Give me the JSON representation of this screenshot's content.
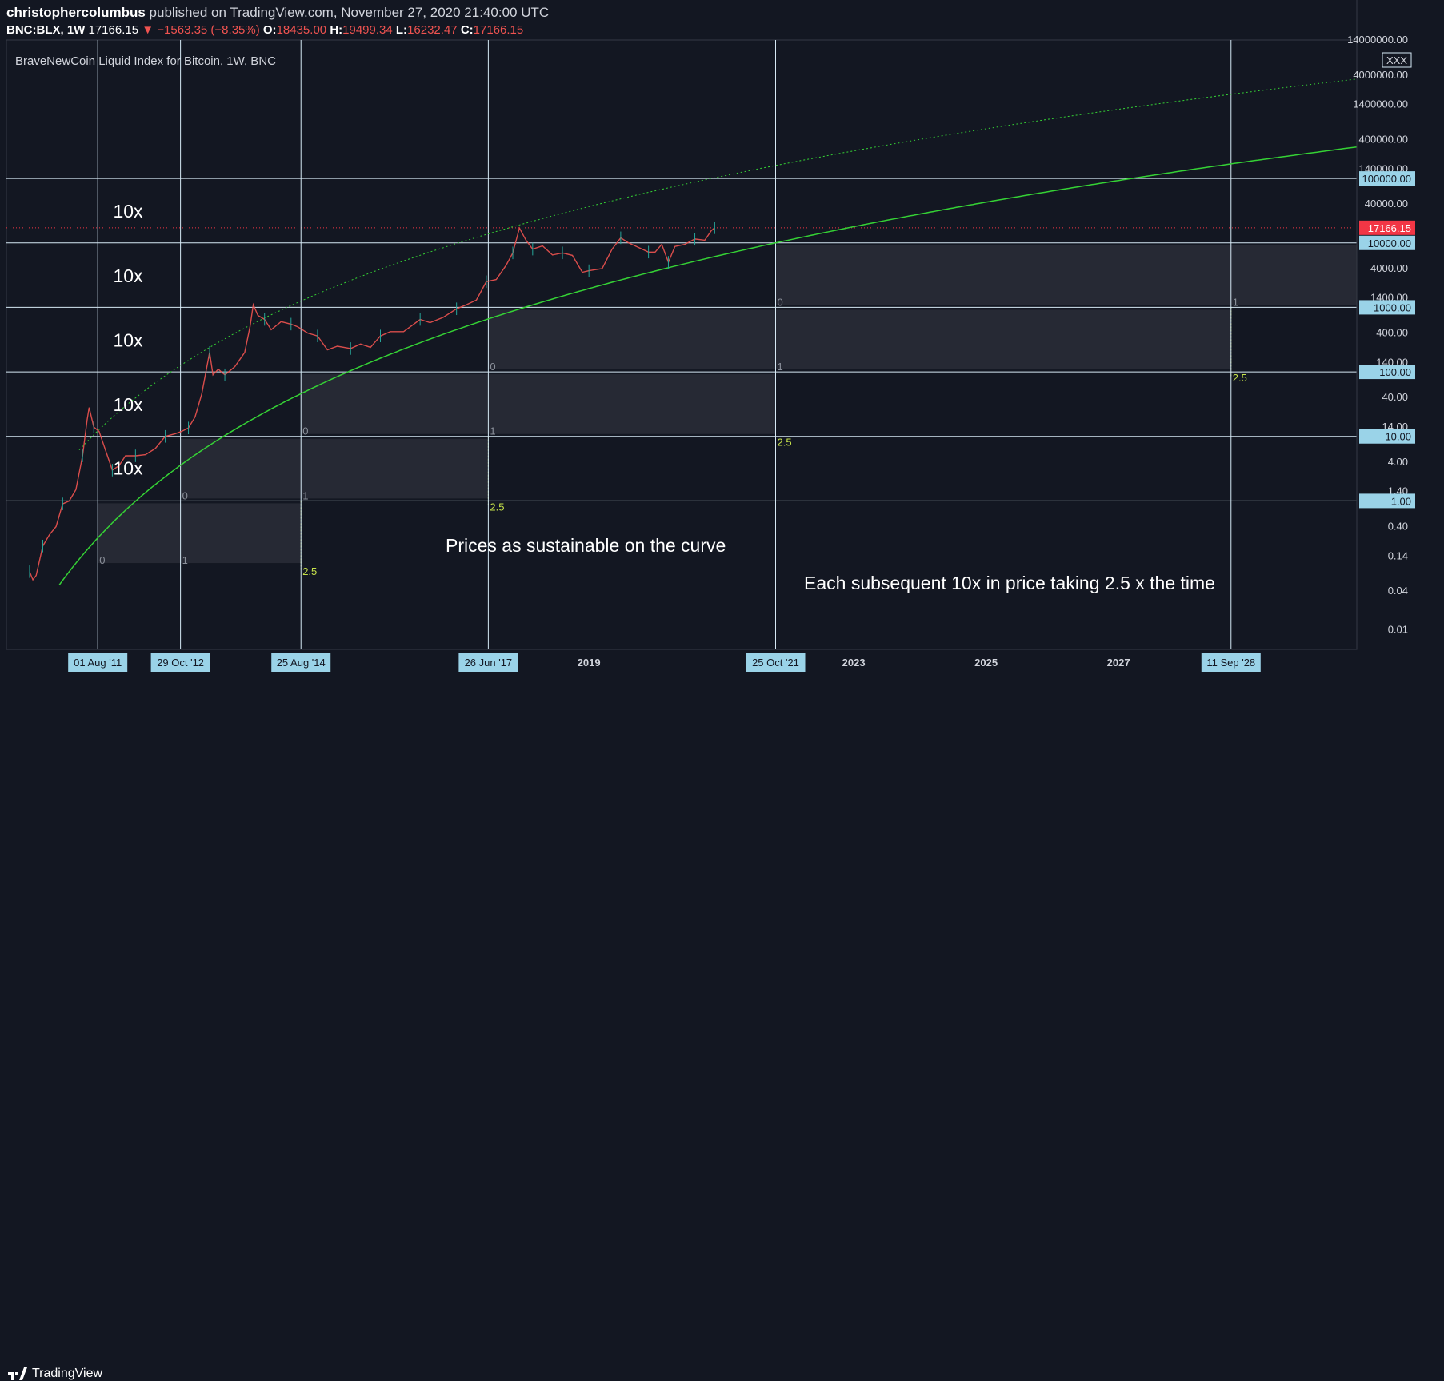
{
  "header": {
    "author": "christophercolumbus",
    "published_text": " published on TradingView.com, November 27, 2020 21:40:00 UTC"
  },
  "ohlc": {
    "symbol": "BNC:BLX, 1W",
    "last": "17166.15",
    "change": "−1563.35 (−8.35%)",
    "o_label": "O:",
    "o": "18435.00",
    "h_label": "H:",
    "h": "19499.34",
    "l_label": "L:",
    "l": "16232.47",
    "c_label": "C:",
    "c": "17166.15"
  },
  "chart_data": {
    "type": "line",
    "title": "BraveNewCoin Liquid Index for Bitcoin, 1W, BNC",
    "y_scale": "log",
    "ylim": [
      0.005,
      14000000
    ],
    "xlim": [
      2010.2,
      2030.6
    ],
    "price_axis_ticks": [
      "14000000.00",
      "4000000.00",
      "1400000.00",
      "400000.00",
      "140000.00",
      "40000.00",
      "4000.00",
      "1400.00",
      "400.00",
      "140.00",
      "40.00",
      "14.00",
      "4.00",
      "1.40",
      "0.40",
      "0.14",
      "0.04",
      "0.01"
    ],
    "tick_values": [
      14000000,
      4000000,
      1400000,
      400000,
      140000,
      40000,
      4000,
      1400,
      400,
      140,
      40,
      14,
      4,
      1.4,
      0.4,
      0.14,
      0.04,
      0.01
    ],
    "highlighted_levels": [
      {
        "label": "100000.00",
        "value": 100000
      },
      {
        "label": "10000.00",
        "value": 10000
      },
      {
        "label": "1000.00",
        "value": 1000
      },
      {
        "label": "100.00",
        "value": 100
      },
      {
        "label": "10.00",
        "value": 10
      },
      {
        "label": "1.00",
        "value": 1
      }
    ],
    "last_price": {
      "label": "17166.15",
      "value": 17166.15,
      "color": "#f23645"
    },
    "time_axis_labels": [
      {
        "label": "2019",
        "t": 2019.0
      },
      {
        "label": "2023",
        "t": 2023.0
      },
      {
        "label": "2025",
        "t": 2025.0
      },
      {
        "label": "2027",
        "t": 2027.0
      }
    ],
    "date_markers": [
      {
        "label": "01 Aug '11",
        "t": 2011.58
      },
      {
        "label": "29 Oct '12",
        "t": 2012.83
      },
      {
        "label": "25 Aug '14",
        "t": 2014.65
      },
      {
        "label": "26 Jun '17",
        "t": 2017.48
      },
      {
        "label": "25 Oct '21",
        "t": 2021.82
      },
      {
        "label": "11 Sep '28",
        "t": 2028.7
      }
    ],
    "ten_x_labels": [
      {
        "label": "10x",
        "value": 31000
      },
      {
        "label": "10x",
        "value": 3100
      },
      {
        "label": "10x",
        "value": 310
      },
      {
        "label": "10x",
        "value": 31
      },
      {
        "label": "10x",
        "value": 3.2
      }
    ],
    "fib_zones": [
      {
        "t0": 2011.58,
        "t1": 2012.83,
        "t2": 2014.65,
        "top": 1,
        "bottom": 0.1,
        "l0": "0",
        "l1": "1",
        "l2": "2.5"
      },
      {
        "t0": 2012.83,
        "t1": 2014.65,
        "t2": 2017.48,
        "top": 10,
        "bottom": 1,
        "l0": "0",
        "l1": "1",
        "l2": "2.5"
      },
      {
        "t0": 2014.65,
        "t1": 2017.48,
        "t2": 2021.82,
        "top": 100,
        "bottom": 10,
        "l0": "0",
        "l1": "1",
        "l2": "2.5"
      },
      {
        "t0": 2017.48,
        "t1": 2021.82,
        "t2": 2028.7,
        "top": 1000,
        "bottom": 100,
        "l0": "0",
        "l1": "1",
        "l2": "2.5"
      },
      {
        "t0": 2021.82,
        "t1": 2028.7,
        "t2": null,
        "top": 10000,
        "bottom": 1000,
        "l0": "0",
        "l1": "1",
        "l2": ""
      }
    ],
    "price_series": [
      [
        2010.55,
        0.08
      ],
      [
        2010.6,
        0.06
      ],
      [
        2010.65,
        0.07
      ],
      [
        2010.75,
        0.2
      ],
      [
        2010.85,
        0.3
      ],
      [
        2010.95,
        0.4
      ],
      [
        2011.05,
        0.9
      ],
      [
        2011.15,
        1.0
      ],
      [
        2011.25,
        1.5
      ],
      [
        2011.35,
        5
      ],
      [
        2011.42,
        18
      ],
      [
        2011.45,
        28
      ],
      [
        2011.52,
        14
      ],
      [
        2011.6,
        12
      ],
      [
        2011.7,
        6
      ],
      [
        2011.8,
        3
      ],
      [
        2011.9,
        3.5
      ],
      [
        2012.0,
        5
      ],
      [
        2012.15,
        5
      ],
      [
        2012.3,
        5.2
      ],
      [
        2012.45,
        6.5
      ],
      [
        2012.6,
        10
      ],
      [
        2012.75,
        11
      ],
      [
        2012.85,
        12
      ],
      [
        2012.95,
        13.5
      ],
      [
        2013.05,
        20
      ],
      [
        2013.15,
        45
      ],
      [
        2013.27,
        200
      ],
      [
        2013.32,
        90
      ],
      [
        2013.4,
        110
      ],
      [
        2013.5,
        90
      ],
      [
        2013.65,
        120
      ],
      [
        2013.8,
        200
      ],
      [
        2013.88,
        500
      ],
      [
        2013.93,
        1100
      ],
      [
        2014.0,
        750
      ],
      [
        2014.1,
        650
      ],
      [
        2014.2,
        450
      ],
      [
        2014.35,
        600
      ],
      [
        2014.5,
        550
      ],
      [
        2014.6,
        500
      ],
      [
        2014.75,
        400
      ],
      [
        2014.9,
        360
      ],
      [
        2015.05,
        220
      ],
      [
        2015.2,
        250
      ],
      [
        2015.4,
        230
      ],
      [
        2015.55,
        270
      ],
      [
        2015.7,
        240
      ],
      [
        2015.85,
        360
      ],
      [
        2016.0,
        420
      ],
      [
        2016.2,
        420
      ],
      [
        2016.45,
        650
      ],
      [
        2016.6,
        580
      ],
      [
        2016.8,
        700
      ],
      [
        2017.0,
        950
      ],
      [
        2017.15,
        1100
      ],
      [
        2017.3,
        1300
      ],
      [
        2017.45,
        2500
      ],
      [
        2017.6,
        2700
      ],
      [
        2017.75,
        4500
      ],
      [
        2017.85,
        7000
      ],
      [
        2017.95,
        17000
      ],
      [
        2018.05,
        11000
      ],
      [
        2018.15,
        8000
      ],
      [
        2018.3,
        9000
      ],
      [
        2018.45,
        6500
      ],
      [
        2018.6,
        7000
      ],
      [
        2018.75,
        6400
      ],
      [
        2018.9,
        3500
      ],
      [
        2019.0,
        3700
      ],
      [
        2019.2,
        4000
      ],
      [
        2019.35,
        8000
      ],
      [
        2019.48,
        12000
      ],
      [
        2019.6,
        10000
      ],
      [
        2019.75,
        8500
      ],
      [
        2019.9,
        7200
      ],
      [
        2020.0,
        7200
      ],
      [
        2020.1,
        9500
      ],
      [
        2020.2,
        5000
      ],
      [
        2020.3,
        8800
      ],
      [
        2020.45,
        9500
      ],
      [
        2020.6,
        11500
      ],
      [
        2020.75,
        11000
      ],
      [
        2020.85,
        15500
      ],
      [
        2020.9,
        17166
      ]
    ],
    "curves": {
      "support_curve": {
        "name": "",
        "color": "#35d235",
        "style": "solid"
      },
      "upper_curve": {
        "name": "",
        "color": "#35d235",
        "style": "dotted"
      }
    }
  },
  "annotations": {
    "curve_note": "Prices as sustainable on the curve",
    "time_note": "Each subsequent 10x in price taking 2.5 x the time"
  },
  "legend": {
    "close_label": "XXX"
  },
  "footer": {
    "brand": "TradingView"
  },
  "colors": {
    "background": "#131722",
    "grid": "#d6e9f5",
    "price": "#ef5350",
    "up": "#26a69a",
    "curve": "#35d235",
    "fib_label": "#c6e24a",
    "marker_bg": "#9ad3e8"
  }
}
